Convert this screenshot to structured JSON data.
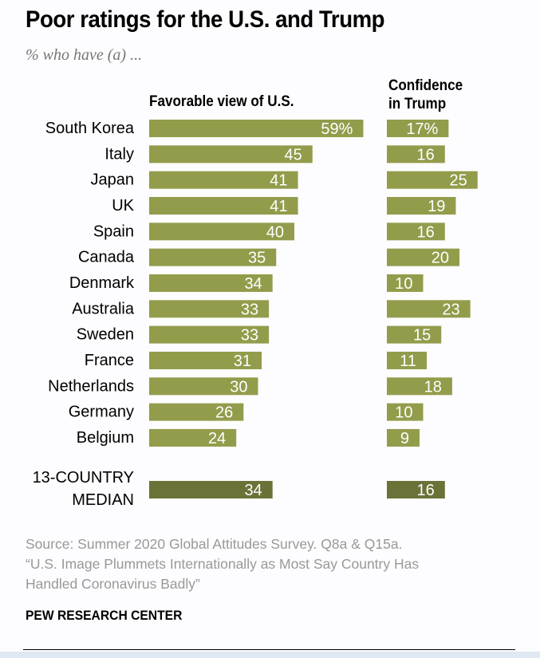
{
  "title": "Poor ratings for the U.S. and Trump",
  "subtitle": "% who have (a) ...",
  "chart_data": {
    "type": "bar",
    "orientation": "horizontal",
    "categories": [
      "South Korea",
      "Italy",
      "Japan",
      "UK",
      "Spain",
      "Canada",
      "Denmark",
      "Australia",
      "Sweden",
      "France",
      "Netherlands",
      "Germany",
      "Belgium"
    ],
    "series": [
      {
        "name": "Favorable view of U.S.",
        "values": [
          59,
          45,
          41,
          41,
          40,
          35,
          34,
          33,
          33,
          31,
          30,
          26,
          24
        ]
      },
      {
        "name": "Confidence in Trump",
        "values": [
          17,
          16,
          25,
          19,
          16,
          20,
          10,
          23,
          15,
          11,
          18,
          10,
          9
        ]
      }
    ],
    "data_labels": {
      "favorable": [
        "59%",
        "45",
        "41",
        "41",
        "40",
        "35",
        "34",
        "33",
        "33",
        "31",
        "30",
        "26",
        "24"
      ],
      "confidence": [
        "17%",
        "16",
        "25",
        "19",
        "16",
        "20",
        "10",
        "23",
        "15",
        "11",
        "18",
        "10",
        "9"
      ]
    },
    "median": {
      "label_line1": "13-COUNTRY",
      "label_line2": "MEDIAN",
      "favorable": 34,
      "confidence": 16
    },
    "column_headers": {
      "favorable": "Favorable view of U.S.",
      "confidence_line1": "Confidence",
      "confidence_line2": "in Trump"
    },
    "colors": {
      "bar": "#939c4b",
      "median_bar": "#6b7237",
      "label": "#ffffff"
    },
    "grid": false,
    "legend": "none"
  },
  "source": {
    "line1": "Source: Summer 2020 Global Attitudes Survey. Q8a & Q15a.",
    "line2": "“U.S. Image Plummets Internationally as Most Say Country Has",
    "line3": "Handled Coronavirus Badly”"
  },
  "brand": "PEW RESEARCH CENTER"
}
